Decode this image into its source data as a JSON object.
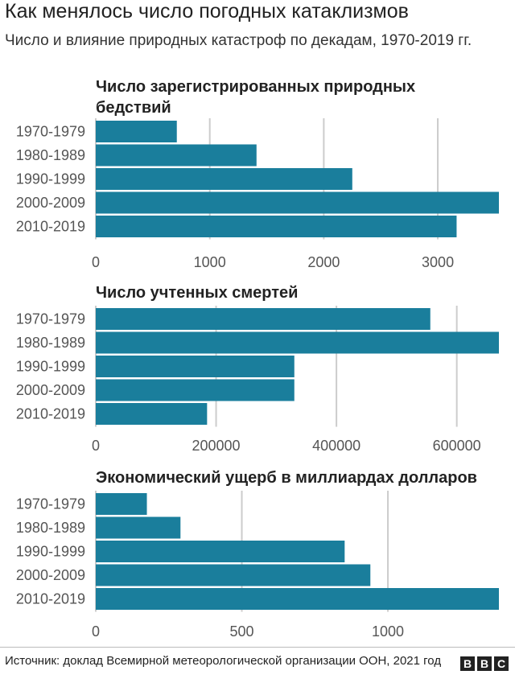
{
  "header": {
    "title": "Как менялось число погодных катаклизмов",
    "subtitle": "Число и влияние природных катастроф по декадам, 1970-2019 гг."
  },
  "footer": {
    "source": "Источник: доклад Всемирной метеорологической организации ООН, 2021 год",
    "logo_letters": [
      "B",
      "B",
      "C"
    ]
  },
  "colors": {
    "bar": "#1a7e9c",
    "grid": "#cccccc",
    "text": "#555555"
  },
  "chart_data": [
    {
      "type": "bar",
      "orientation": "horizontal",
      "title_lines": [
        "Число зарегистрированных природных",
        "бедствий"
      ],
      "categories": [
        "1970-1979",
        "1980-1989",
        "1990-1999",
        "2000-2009",
        "2010-2019"
      ],
      "values": [
        711,
        1410,
        2250,
        3536,
        3165
      ],
      "ticks": [
        0,
        1000,
        2000,
        3000
      ],
      "tick_labels": [
        "0",
        "1000",
        "2000",
        "3000"
      ],
      "xlim": [
        0,
        3536
      ]
    },
    {
      "type": "bar",
      "orientation": "horizontal",
      "title_lines": [
        "Число учтенных смертей"
      ],
      "categories": [
        "1970-1979",
        "1980-1989",
        "1990-1999",
        "2000-2009",
        "2010-2019"
      ],
      "values": [
        556000,
        670000,
        330000,
        330000,
        185000
      ],
      "ticks": [
        0,
        200000,
        400000,
        600000
      ],
      "tick_labels": [
        "0",
        "200000",
        "400000",
        "600000"
      ],
      "xlim": [
        0,
        670000
      ]
    },
    {
      "type": "bar",
      "orientation": "horizontal",
      "title_lines": [
        "Экономический ущерб в миллиардах долларов"
      ],
      "categories": [
        "1970-1979",
        "1980-1989",
        "1990-1999",
        "2000-2009",
        "2010-2019"
      ],
      "values": [
        175,
        290,
        852,
        940,
        1380
      ],
      "ticks": [
        0,
        500,
        1000
      ],
      "tick_labels": [
        "0",
        "500",
        "1000"
      ],
      "xlim": [
        0,
        1380
      ]
    }
  ]
}
